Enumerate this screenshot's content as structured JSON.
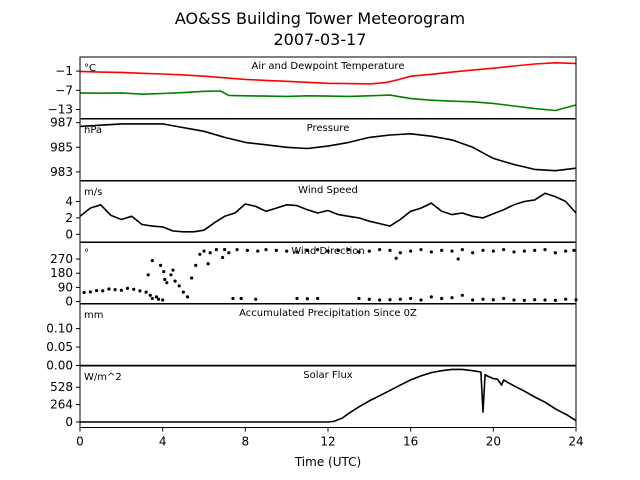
{
  "title": "AO&SS Building Tower Meteorogram",
  "subtitle": "2007-03-17",
  "chart_data": {
    "type": "line",
    "xlabel": "Time (UTC)",
    "xlim": [
      0,
      24
    ],
    "xticks": [
      0,
      4,
      8,
      12,
      16,
      20,
      24
    ],
    "panels": [
      {
        "title": "Air and Dewpoint Temperature",
        "unit": "°C",
        "ylim": [
          -15.8,
          3.4
        ],
        "yticks": [
          -13,
          -7,
          -1
        ],
        "tick_labels": [
          "−13",
          "−7",
          "−1"
        ],
        "series": [
          {
            "color": "#ff0000",
            "x": [
              0,
              1,
              2,
              3,
              4,
              5,
              6,
              7,
              8,
              9,
              10,
              11,
              12,
              13,
              14,
              14.8,
              15.5,
              16,
              17,
              18,
              19,
              20,
              21,
              22,
              23,
              24
            ],
            "y": [
              -1.1,
              -1.3,
              -1.4,
              -1.7,
              -1.9,
              -2.2,
              -2.6,
              -3.1,
              -3.6,
              -3.9,
              -4.2,
              -4.5,
              -4.8,
              -4.9,
              -5.0,
              -4.6,
              -3.5,
              -2.6,
              -2.0,
              -1.3,
              -0.7,
              -0.1,
              0.6,
              1.2,
              1.6,
              1.4
            ]
          },
          {
            "color": "#008000",
            "x": [
              0,
              1,
              2,
              3,
              4,
              5,
              6,
              6.8,
              7.2,
              8,
              9,
              10,
              11,
              12,
              13,
              14,
              15,
              16,
              17,
              18,
              19,
              20,
              21,
              22,
              23,
              24
            ],
            "y": [
              -7.8,
              -7.9,
              -7.8,
              -8.2,
              -8.0,
              -7.7,
              -7.3,
              -7.2,
              -8.6,
              -8.7,
              -8.8,
              -8.9,
              -8.7,
              -8.8,
              -8.9,
              -8.7,
              -8.5,
              -9.6,
              -10.1,
              -10.4,
              -10.6,
              -11.1,
              -11.9,
              -12.7,
              -13.3,
              -11.6
            ]
          }
        ]
      },
      {
        "title": "Pressure",
        "unit": "hPa",
        "ylim": [
          982.3,
          987.3
        ],
        "yticks": [
          983,
          985,
          987
        ],
        "tick_labels": [
          "983",
          "985",
          "987"
        ],
        "series": [
          {
            "color": "#000000",
            "x": [
              0,
              1,
              2,
              3,
              4,
              5,
              6,
              7,
              8,
              9,
              10,
              11,
              12,
              13,
              14,
              15,
              16,
              17,
              18,
              19,
              20,
              21,
              22,
              23,
              24
            ],
            "y": [
              986.7,
              986.8,
              986.9,
              986.9,
              986.9,
              986.6,
              986.3,
              985.8,
              985.4,
              985.2,
              985.0,
              984.9,
              985.1,
              985.4,
              985.8,
              986.0,
              986.1,
              985.9,
              985.6,
              985.0,
              984.1,
              983.6,
              983.2,
              983.1,
              983.3
            ]
          }
        ]
      },
      {
        "title": "Wind Speed",
        "unit": "m/s",
        "ylim": [
          -1.0,
          6.5
        ],
        "yticks": [
          0,
          2,
          4
        ],
        "tick_labels": [
          "0",
          "2",
          "4"
        ],
        "series": [
          {
            "color": "#000000",
            "x": [
              0,
              0.5,
              1,
              1.5,
              2,
              2.5,
              3,
              3.5,
              4,
              4.5,
              5,
              5.5,
              6,
              6.5,
              7,
              7.5,
              8,
              8.5,
              9,
              9.5,
              10,
              10.5,
              11,
              11.5,
              12,
              12.5,
              13,
              13.5,
              14,
              14.5,
              15,
              15.5,
              16,
              16.5,
              17,
              17.5,
              18,
              18.5,
              19,
              19.5,
              20,
              20.5,
              21,
              21.5,
              22,
              22.5,
              23,
              23.5,
              24
            ],
            "y": [
              2.2,
              3.2,
              3.6,
              2.3,
              1.8,
              2.2,
              1.2,
              1.0,
              0.9,
              0.4,
              0.3,
              0.3,
              0.5,
              1.4,
              2.2,
              2.6,
              3.7,
              3.4,
              2.8,
              3.2,
              3.6,
              3.5,
              3.0,
              2.6,
              2.9,
              2.4,
              2.2,
              2.0,
              1.6,
              1.3,
              1.0,
              1.8,
              2.8,
              3.2,
              3.8,
              2.8,
              2.4,
              2.6,
              2.2,
              2.0,
              2.5,
              3.0,
              3.6,
              4.0,
              4.2,
              5.0,
              4.6,
              4.0,
              2.6
            ]
          }
        ]
      },
      {
        "title": "Wind Direction",
        "unit": "°",
        "ylim": [
          -12,
          378
        ],
        "yticks": [
          0,
          90,
          180,
          270
        ],
        "tick_labels": [
          "0",
          "90",
          "180",
          "270"
        ],
        "series": [
          {
            "color": "#000000",
            "x": [
              0.2,
              0.5,
              0.8,
              1.1,
              1.4,
              1.7,
              2.0,
              2.3,
              2.6,
              2.9,
              3.2,
              3.4,
              3.5,
              3.7,
              3.8,
              4.0,
              4.05,
              4.1,
              4.2,
              4.4,
              4.6,
              4.8,
              5.0,
              5.2,
              5.4,
              5.6,
              5.8,
              6.0,
              6.3,
              6.6,
              7.0,
              7.4,
              7.8,
              8.5,
              10.5,
              11.0,
              11.5,
              13.5,
              14.0,
              14.5,
              15.0,
              15.5,
              16.0,
              16.5,
              17.0,
              17.5,
              18.0,
              18.5,
              19.0,
              19.5,
              20.0,
              20.5,
              21.0,
              21.5,
              22.0,
              22.5,
              23.0,
              23.5,
              24.0,
              7.2,
              7.6,
              8.1,
              8.6,
              9.0,
              9.5,
              10.0,
              10.5,
              11.0,
              11.5,
              12.0,
              12.5,
              13.0,
              13.5,
              14.0,
              14.5,
              15.0,
              15.5,
              16.0,
              16.5,
              17.0,
              17.5,
              18.0,
              18.5,
              19.0,
              19.5,
              20.0,
              20.5,
              21.0,
              21.5,
              22.0,
              22.5,
              23.0,
              23.5,
              23.9,
              3.3,
              3.5,
              3.9,
              4.5,
              6.2,
              6.9,
              15.3,
              18.3
            ],
            "y": [
              58,
              62,
              70,
              68,
              80,
              76,
              72,
              84,
              78,
              68,
              60,
              40,
              20,
              30,
              15,
              10,
              190,
              140,
              120,
              170,
              130,
              100,
              60,
              30,
              150,
              230,
              300,
              320,
              310,
              330,
              330,
              20,
              20,
              15,
              20,
              18,
              20,
              20,
              15,
              10,
              12,
              15,
              20,
              10,
              30,
              20,
              25,
              40,
              10,
              15,
              12,
              20,
              10,
              8,
              12,
              10,
              8,
              15,
              12,
              310,
              330,
              325,
              320,
              330,
              325,
              320,
              315,
              325,
              330,
              320,
              325,
              330,
              315,
              320,
              330,
              325,
              310,
              320,
              330,
              315,
              325,
              320,
              330,
              310,
              325,
              320,
              330,
              315,
              320,
              325,
              330,
              310,
              320,
              325,
              170,
              260,
              230,
              200,
              240,
              280,
              275,
              270
            ]
          }
        ]
      },
      {
        "title": "Accumulated Precipitation Since 0Z",
        "unit": "mm",
        "ylim": [
          0.0,
          0.1667
        ],
        "yticks": [
          0.0,
          0.05,
          0.1
        ],
        "tick_labels": [
          "0.00",
          "0.05",
          "0.10"
        ],
        "series": [
          {
            "color": "#000000",
            "x": [
              0,
              24
            ],
            "y": [
              0,
              0
            ]
          }
        ]
      },
      {
        "title": "Solar Flux",
        "unit": "W/m^2",
        "ylim": [
          -84,
          851
        ],
        "yticks": [
          0,
          264,
          528
        ],
        "tick_labels": [
          "0",
          "264",
          "528"
        ],
        "series": [
          {
            "color": "#000000",
            "x": [
              0,
              4,
              8,
              12,
              12.3,
              12.7,
              13,
              13.5,
              14,
              14.5,
              15,
              15.5,
              16,
              16.5,
              17,
              17.5,
              18,
              18.5,
              19,
              19.4,
              19.5,
              19.6,
              19.7,
              20,
              20.2,
              20.4,
              20.5,
              20.7,
              21,
              21.5,
              22,
              22.5,
              23,
              23.3,
              23.5,
              23.7,
              24
            ],
            "y": [
              0,
              0,
              0,
              0,
              10,
              60,
              130,
              230,
              320,
              400,
              480,
              560,
              640,
              700,
              750,
              780,
              800,
              800,
              780,
              760,
              150,
              720,
              700,
              660,
              650,
              560,
              640,
              600,
              550,
              470,
              380,
              300,
              200,
              150,
              120,
              80,
              20
            ]
          }
        ]
      }
    ]
  }
}
